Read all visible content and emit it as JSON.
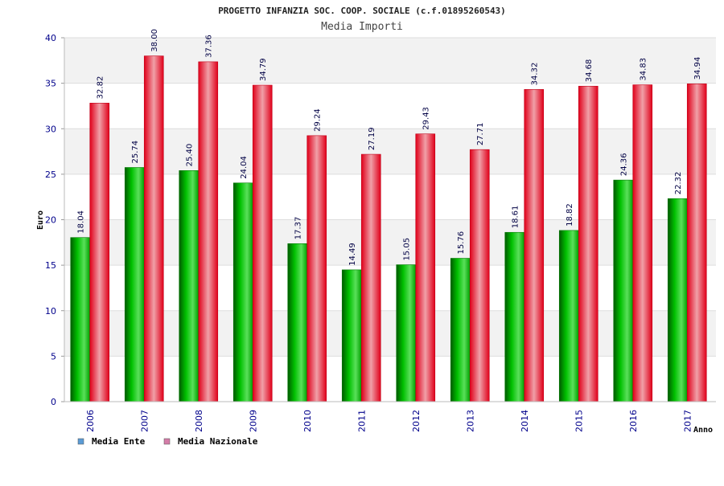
{
  "chart_data": {
    "type": "bar",
    "title": "PROGETTO INFANZIA SOC. COOP. SOCIALE (c.f.01895260543)",
    "subtitle": "Media Importi",
    "xlabel": "Anno",
    "ylabel": "Euro",
    "ylim": [
      0,
      40
    ],
    "yticks": [
      "0",
      "5",
      "10",
      "15",
      "20",
      "25",
      "30",
      "35",
      "40"
    ],
    "categories": [
      "2006",
      "2007",
      "2008",
      "2009",
      "2010",
      "2011",
      "2012",
      "2013",
      "2014",
      "2015",
      "2016",
      "2017"
    ],
    "series": [
      {
        "name": "Media Ente",
        "color": "#00b000",
        "legend_color": "#5b9bd5",
        "values": [
          18.04,
          25.74,
          25.4,
          24.04,
          17.37,
          14.49,
          15.05,
          15.76,
          18.61,
          18.82,
          24.36,
          22.32
        ],
        "labels": [
          "18.04",
          "25.74",
          "25.40",
          "24.04",
          "17.37",
          "14.49",
          "15.05",
          "15.76",
          "18.61",
          "18.82",
          "24.36",
          "22.32"
        ]
      },
      {
        "name": "Media Nazionale",
        "color": "#e8001c",
        "legend_color": "#d47ca8",
        "values": [
          32.82,
          38.0,
          37.36,
          34.79,
          29.24,
          27.19,
          29.43,
          27.71,
          34.32,
          34.68,
          34.83,
          34.94
        ],
        "labels": [
          "32.82",
          "38.00",
          "37.36",
          "34.79",
          "29.24",
          "27.19",
          "29.43",
          "27.71",
          "34.32",
          "34.68",
          "34.83",
          "34.94"
        ]
      }
    ],
    "grid": true,
    "legend_position": "bottom-left"
  }
}
